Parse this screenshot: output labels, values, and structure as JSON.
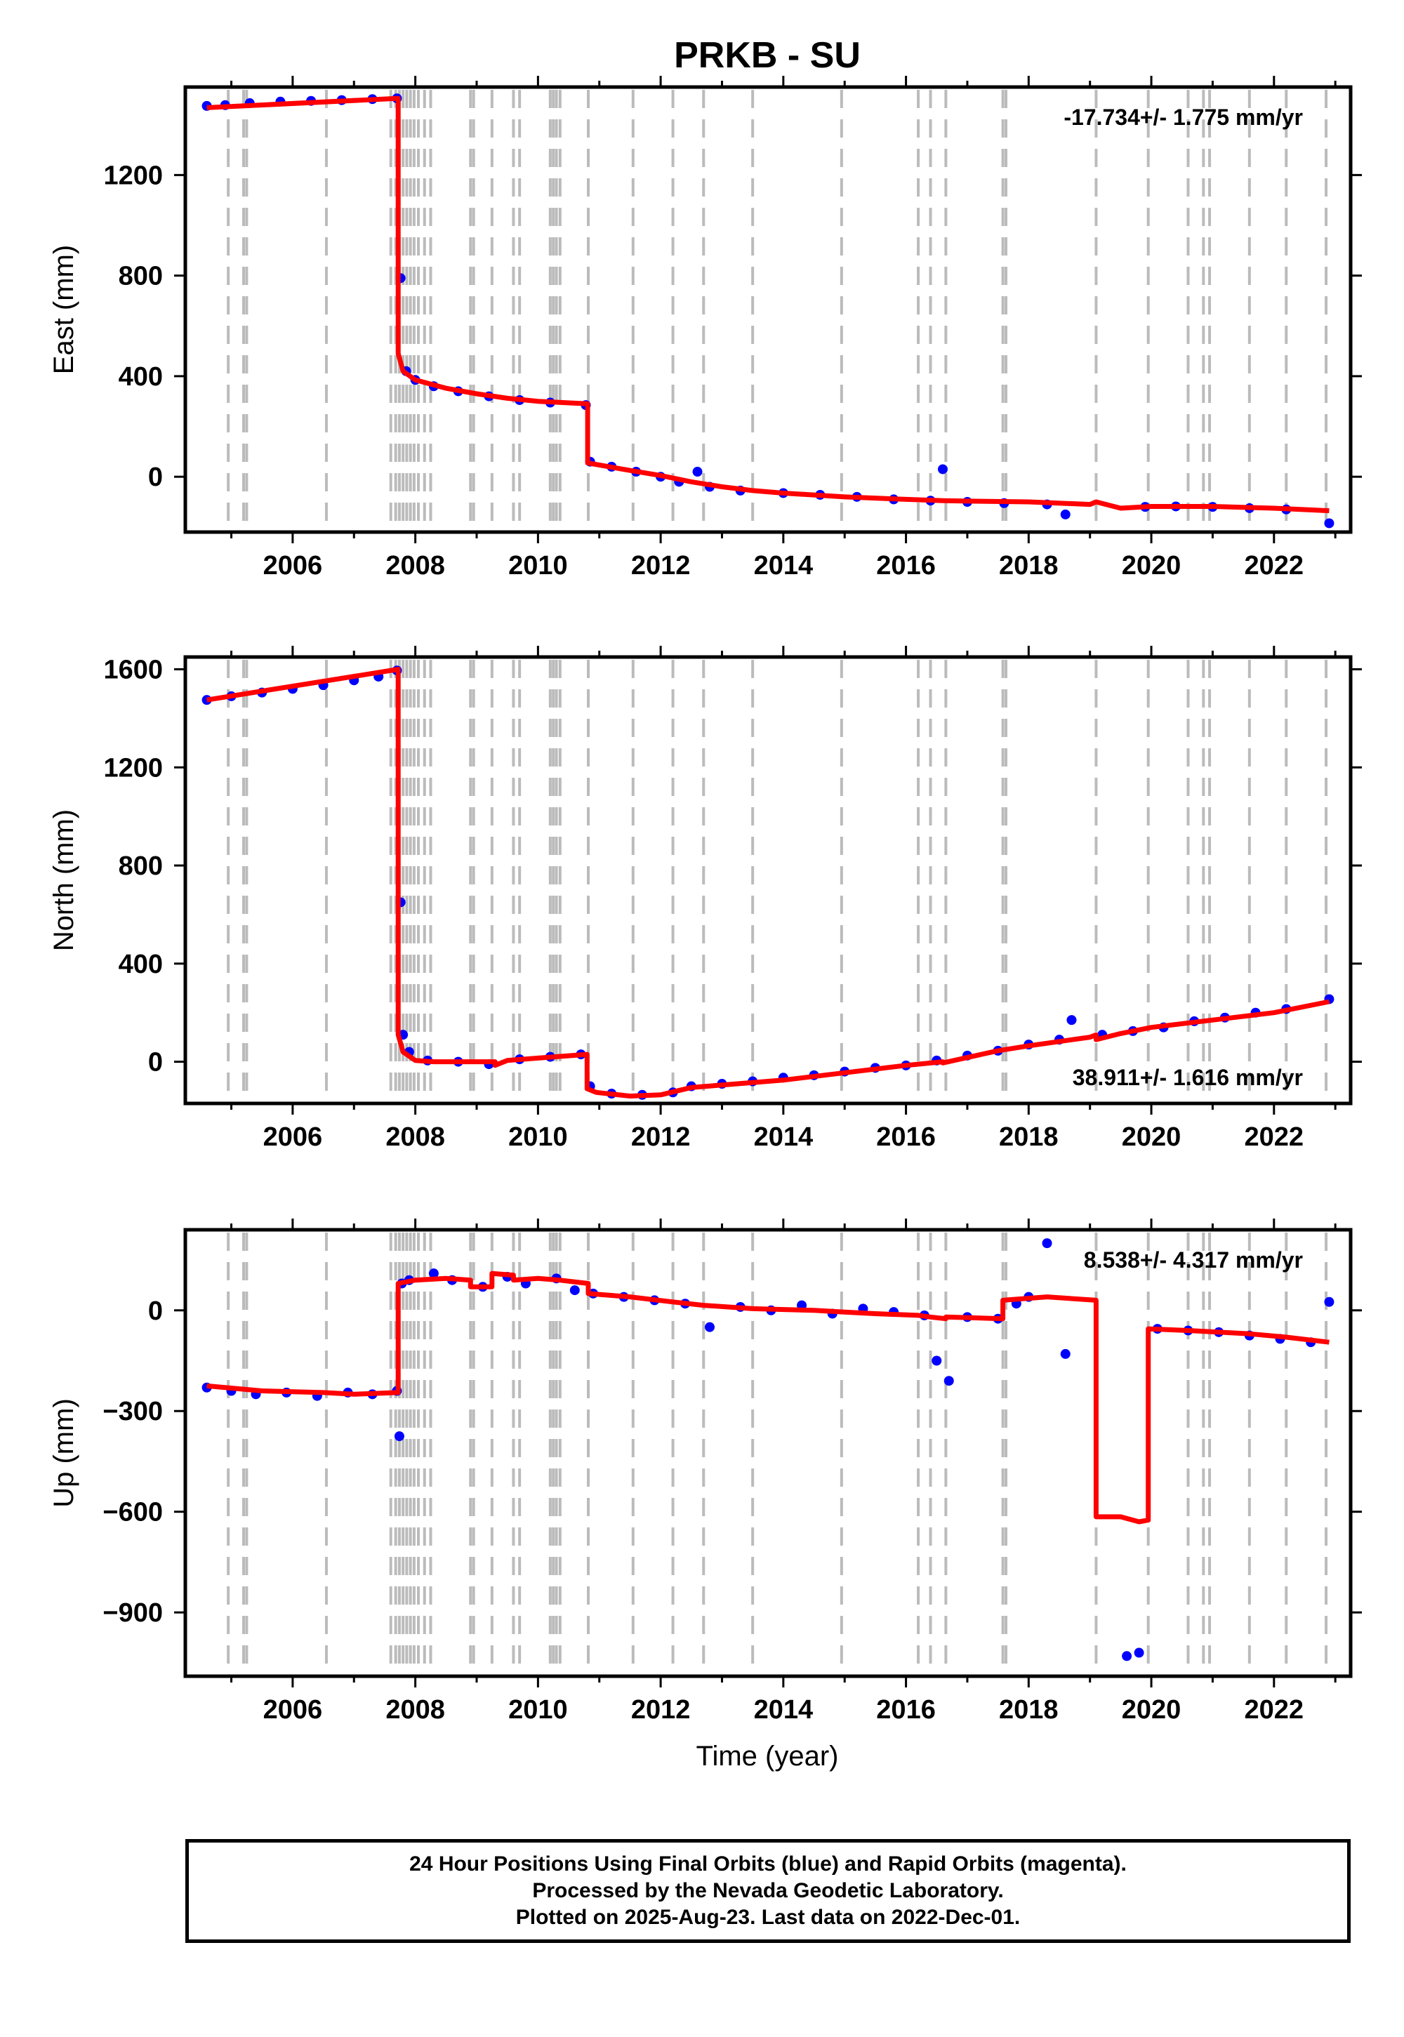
{
  "title": "PRKB - SU",
  "xlabel": "Time (year)",
  "caption": [
    "24 Hour Positions Using Final Orbits (blue) and Rapid Orbits (magenta).",
    "Processed by the Nevada Geodetic Laboratory.",
    "Plotted on 2025-Aug-23. Last data on 2022-Dec-01."
  ],
  "colors": {
    "data": "#0000ff",
    "model": "#ff0000",
    "steps": "#bbbbbb",
    "frame": "#000000"
  },
  "chart_data": [
    {
      "type": "scatter",
      "name": "east",
      "ylabel": "East (mm)",
      "rate_label": "-17.734+/- 1.775 mm/yr",
      "rate_position": "top-right",
      "xlim": [
        2004.25,
        2023.25
      ],
      "ylim": [
        -220,
        1550
      ],
      "xticks": [
        2006,
        2008,
        2010,
        2012,
        2014,
        2016,
        2018,
        2020,
        2022
      ],
      "yticks": [
        0,
        400,
        800,
        1200
      ],
      "series": [
        {
          "kind": "points",
          "x": [
            2004.6,
            2004.9,
            2005.3,
            2005.8,
            2006.3,
            2006.8,
            2007.3,
            2007.7,
            2007.76,
            2007.85,
            2008.0,
            2008.3,
            2008.7,
            2009.2,
            2009.7,
            2010.2,
            2010.78,
            2010.85,
            2011.2,
            2011.6,
            2012.0,
            2012.3,
            2012.6,
            2012.8,
            2013.3,
            2014.0,
            2014.6,
            2015.2,
            2015.8,
            2016.4,
            2016.6,
            2017.0,
            2017.6,
            2018.3,
            2018.6,
            2019.9,
            2020.4,
            2021.0,
            2021.6,
            2022.2,
            2022.9
          ],
          "y": [
            1475,
            1478,
            1486,
            1492,
            1495,
            1498,
            1502,
            1505,
            790,
            420,
            385,
            360,
            340,
            320,
            305,
            295,
            285,
            60,
            40,
            20,
            0,
            -20,
            20,
            -40,
            -55,
            -65,
            -72,
            -80,
            -90,
            -95,
            30,
            -100,
            -105,
            -110,
            -150,
            -120,
            -118,
            -120,
            -125,
            -130,
            -185
          ]
        }
      ],
      "model": {
        "kind": "line",
        "x": [
          2004.6,
          2007.72,
          2007.72,
          2007.8,
          2008.0,
          2008.5,
          2009.0,
          2009.5,
          2010.0,
          2010.81,
          2010.81,
          2011.5,
          2012.0,
          2012.5,
          2013.0,
          2013.5,
          2014.0,
          2015.0,
          2016.0,
          2016.6,
          2017.0,
          2018.0,
          2019.0,
          2019.1,
          2019.5,
          2020.0,
          2021.0,
          2022.0,
          2022.9
        ],
        "y": [
          1468,
          1505,
          490,
          420,
          385,
          352,
          330,
          312,
          300,
          290,
          55,
          25,
          5,
          -20,
          -40,
          -55,
          -65,
          -80,
          -90,
          -95,
          -97,
          -100,
          -110,
          -100,
          -125,
          -118,
          -118,
          -125,
          -135
        ]
      },
      "step_epochs": [
        2004.95,
        2005.2,
        2005.25,
        2006.55,
        2007.6,
        2007.68,
        2007.74,
        2007.8,
        2007.86,
        2007.92,
        2007.98,
        2008.05,
        2008.15,
        2008.25,
        2008.9,
        2008.95,
        2009.25,
        2009.6,
        2009.7,
        2010.2,
        2010.25,
        2010.3,
        2010.36,
        2010.82,
        2011.55,
        2012.2,
        2012.7,
        2013.5,
        2014.95,
        2016.2,
        2016.4,
        2016.65,
        2017.58,
        2017.63,
        2019.1,
        2019.95,
        2020.6,
        2020.85,
        2020.95,
        2021.6,
        2022.2,
        2022.85
      ]
    },
    {
      "type": "scatter",
      "name": "north",
      "ylabel": "North (mm)",
      "rate_label": "38.911+/- 1.616 mm/yr",
      "rate_position": "bottom-right",
      "xlim": [
        2004.25,
        2023.25
      ],
      "ylim": [
        -170,
        1650
      ],
      "xticks": [
        2006,
        2008,
        2010,
        2012,
        2014,
        2016,
        2018,
        2020,
        2022
      ],
      "yticks": [
        0,
        400,
        800,
        1200,
        1600
      ],
      "series": [
        {
          "kind": "points",
          "x": [
            2004.6,
            2005.0,
            2005.5,
            2006.0,
            2006.5,
            2007.0,
            2007.4,
            2007.7,
            2007.76,
            2007.8,
            2007.9,
            2008.2,
            2008.7,
            2009.2,
            2009.7,
            2010.2,
            2010.7,
            2010.85,
            2011.2,
            2011.7,
            2012.2,
            2012.5,
            2013.0,
            2013.5,
            2014.0,
            2014.5,
            2015.0,
            2015.5,
            2016.0,
            2016.5,
            2017.0,
            2017.5,
            2018.0,
            2018.5,
            2018.7,
            2019.2,
            2019.7,
            2020.2,
            2020.7,
            2021.2,
            2021.7,
            2022.2,
            2022.9
          ],
          "y": [
            1475,
            1490,
            1505,
            1520,
            1535,
            1555,
            1570,
            1595,
            650,
            110,
            40,
            5,
            0,
            -10,
            10,
            20,
            30,
            -100,
            -130,
            -135,
            -125,
            -100,
            -90,
            -80,
            -65,
            -55,
            -40,
            -25,
            -15,
            5,
            25,
            45,
            70,
            90,
            170,
            110,
            125,
            140,
            165,
            180,
            200,
            215,
            255
          ]
        }
      ],
      "model": {
        "kind": "line",
        "x": [
          2004.6,
          2007.72,
          2007.72,
          2007.8,
          2008.0,
          2008.3,
          2009.0,
          2009.3,
          2009.3,
          2009.5,
          2010.0,
          2010.8,
          2010.8,
          2010.95,
          2011.5,
          2012.0,
          2012.5,
          2013.0,
          2014.0,
          2015.0,
          2016.0,
          2016.6,
          2016.6,
          2017.5,
          2018.0,
          2019.0,
          2019.1,
          2019.1,
          2019.5,
          2020.0,
          2021.0,
          2022.0,
          2022.9
        ],
        "y": [
          1475,
          1600,
          110,
          40,
          5,
          0,
          0,
          0,
          -15,
          5,
          15,
          30,
          -110,
          -125,
          -140,
          -135,
          -105,
          -95,
          -75,
          -45,
          -15,
          0,
          -5,
          45,
          65,
          100,
          110,
          90,
          115,
          140,
          170,
          200,
          245
        ]
      },
      "step_epochs": [
        2004.95,
        2005.2,
        2005.25,
        2006.55,
        2007.6,
        2007.68,
        2007.74,
        2007.8,
        2007.86,
        2007.92,
        2007.98,
        2008.05,
        2008.15,
        2008.25,
        2008.9,
        2008.95,
        2009.25,
        2009.6,
        2009.7,
        2010.2,
        2010.25,
        2010.3,
        2010.36,
        2010.82,
        2011.55,
        2012.2,
        2012.7,
        2013.5,
        2014.95,
        2016.2,
        2016.4,
        2016.65,
        2017.58,
        2017.63,
        2019.1,
        2019.95,
        2020.6,
        2020.85,
        2020.95,
        2021.6,
        2022.2,
        2022.85
      ]
    },
    {
      "type": "scatter",
      "name": "up",
      "ylabel": "Up (mm)",
      "rate_label": "8.538+/- 4.317 mm/yr",
      "rate_position": "top-right",
      "xlim": [
        2004.25,
        2023.25
      ],
      "ylim": [
        -1090,
        240
      ],
      "xticks": [
        2006,
        2008,
        2010,
        2012,
        2014,
        2016,
        2018,
        2020,
        2022
      ],
      "yticks": [
        0,
        -300,
        -600,
        -900
      ],
      "series": [
        {
          "kind": "points",
          "x": [
            2004.6,
            2005.0,
            2005.4,
            2005.9,
            2006.4,
            2006.9,
            2007.3,
            2007.7,
            2007.74,
            2007.78,
            2007.9,
            2008.3,
            2008.6,
            2009.1,
            2009.5,
            2009.8,
            2010.3,
            2010.6,
            2010.9,
            2011.4,
            2011.9,
            2012.4,
            2012.8,
            2013.3,
            2013.8,
            2014.3,
            2014.8,
            2015.3,
            2015.8,
            2016.3,
            2016.5,
            2016.7,
            2017.0,
            2017.5,
            2017.8,
            2018.0,
            2018.3,
            2018.6,
            2019.6,
            2019.8,
            2020.1,
            2020.6,
            2021.1,
            2021.6,
            2022.1,
            2022.6,
            2022.9
          ],
          "y": [
            -230,
            -240,
            -250,
            -245,
            -255,
            -245,
            -250,
            -240,
            -375,
            80,
            90,
            110,
            90,
            70,
            100,
            80,
            95,
            60,
            50,
            40,
            30,
            20,
            -50,
            10,
            0,
            15,
            -10,
            5,
            -5,
            -15,
            -150,
            -210,
            -20,
            -25,
            20,
            40,
            200,
            -130,
            -1030,
            -1020,
            -55,
            -60,
            -65,
            -75,
            -85,
            -95,
            25
          ]
        }
      ],
      "model": {
        "kind": "line",
        "x": [
          2004.6,
          2005.5,
          2006.5,
          2007.0,
          2007.72,
          2007.72,
          2008.0,
          2008.5,
          2008.9,
          2008.9,
          2009.25,
          2009.25,
          2009.6,
          2009.6,
          2010.0,
          2010.35,
          2010.82,
          2010.82,
          2011.5,
          2012.2,
          2012.7,
          2013.5,
          2014.5,
          2015.0,
          2015.5,
          2016.2,
          2016.4,
          2016.65,
          2016.65,
          2017.58,
          2017.58,
          2018.3,
          2019.1,
          2019.1,
          2019.5,
          2019.8,
          2019.95,
          2019.95,
          2020.6,
          2021.6,
          2022.2,
          2022.9
        ],
        "y": [
          -225,
          -240,
          -245,
          -250,
          -245,
          80,
          90,
          95,
          90,
          70,
          70,
          110,
          105,
          90,
          95,
          90,
          80,
          50,
          40,
          25,
          15,
          5,
          0,
          -5,
          -10,
          -15,
          -20,
          -25,
          -20,
          -25,
          30,
          40,
          30,
          -615,
          -615,
          -630,
          -625,
          -55,
          -60,
          -70,
          -80,
          -95
        ]
      },
      "step_epochs": [
        2004.95,
        2005.2,
        2005.25,
        2006.55,
        2007.6,
        2007.68,
        2007.74,
        2007.8,
        2007.86,
        2007.92,
        2007.98,
        2008.05,
        2008.15,
        2008.25,
        2008.9,
        2008.95,
        2009.25,
        2009.6,
        2009.7,
        2010.2,
        2010.25,
        2010.3,
        2010.36,
        2010.82,
        2011.55,
        2012.2,
        2012.7,
        2013.5,
        2014.95,
        2016.2,
        2016.4,
        2016.65,
        2017.58,
        2017.63,
        2019.1,
        2019.95,
        2020.6,
        2020.85,
        2020.95,
        2021.6,
        2022.2,
        2022.85
      ]
    }
  ]
}
